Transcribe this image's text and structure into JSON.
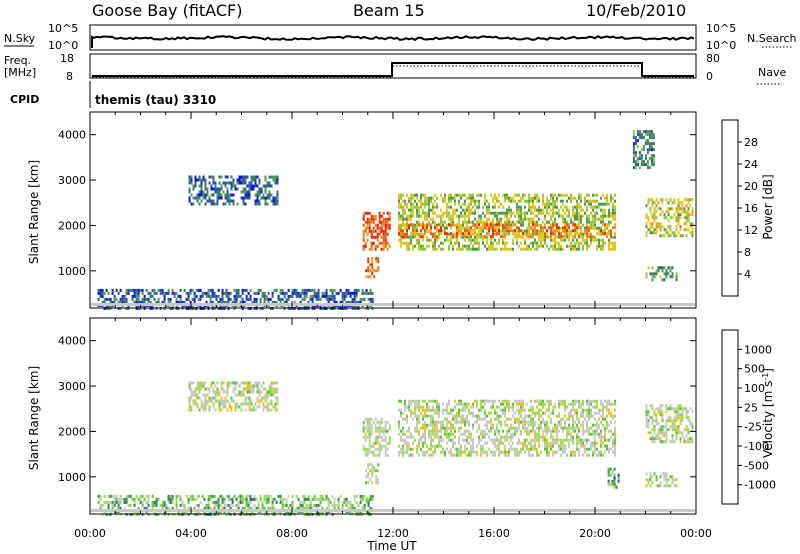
{
  "header": {
    "station": "Goose Bay (fitACF)",
    "beam": "Beam 15",
    "date": "10/Feb/2010"
  },
  "status": {
    "nsky_label": "N.Sky",
    "nsky_ticks": [
      "10^5",
      "10^0"
    ],
    "nsearch_label": "N.Search",
    "nsearch_ticks": [
      "10^5",
      "10^0"
    ],
    "freq_label": "Freq.",
    "freq_unit": "[MHz]",
    "freq_ticks": [
      18,
      8
    ],
    "nave_label": "Nave",
    "nave_ticks": [
      80,
      0
    ],
    "cpid_label": "CPID",
    "cpid_text": "themis (tau) 3310"
  },
  "colors": {
    "power": [
      "#0a18d8",
      "#2a52a8",
      "#3c7a64",
      "#4e9a5a",
      "#8cc43c",
      "#c8d424",
      "#f6b81c",
      "#f08a14",
      "#ec5a10",
      "#e82a0a",
      "#e01808"
    ],
    "velocity": [
      "#2830c8",
      "#2a5fa8",
      "#2f8a58",
      "#62c23a",
      "#9ade4c",
      "#c8c8c8",
      "#c8c8c8",
      "#f2c21a",
      "#f09012",
      "#ee5a10",
      "#e81608"
    ],
    "ground": "#c8c8c8"
  },
  "chart_data": [
    {
      "type": "heatmap",
      "title": "Power",
      "xlabel": "Time UT",
      "ylabel": "Slant Range [km]",
      "x_ticks": [
        "00:00",
        "04:00",
        "08:00",
        "12:00",
        "16:00",
        "20:00",
        "00:00"
      ],
      "xlim_hours": [
        0,
        24
      ],
      "y_ticks": [
        1000,
        2000,
        3000,
        4000
      ],
      "ylim": [
        180,
        4500
      ],
      "colorbar": {
        "label": "Power [dB]",
        "ticks": [
          4,
          8,
          12,
          16,
          20,
          24,
          28
        ],
        "range": [
          0,
          30
        ]
      },
      "regions": [
        {
          "t": [
            3.9,
            7.4
          ],
          "r": [
            2500,
            3100
          ],
          "level": 0.18
        },
        {
          "t": [
            0.3,
            11.2
          ],
          "r": [
            200,
            600
          ],
          "level": 0.16
        },
        {
          "t": [
            10.8,
            11.9
          ],
          "r": [
            1500,
            2300
          ],
          "level": 0.8
        },
        {
          "t": [
            10.9,
            11.4
          ],
          "r": [
            900,
            1300
          ],
          "level": 0.7
        },
        {
          "t": [
            12.2,
            20.8
          ],
          "r": [
            1500,
            2700
          ],
          "level": 0.45
        },
        {
          "t": [
            12.2,
            20.8
          ],
          "r": [
            1750,
            2050
          ],
          "level": 0.7
        },
        {
          "t": [
            22.0,
            23.9
          ],
          "r": [
            1800,
            2600
          ],
          "level": 0.5
        },
        {
          "t": [
            22.0,
            23.2
          ],
          "r": [
            800,
            1100
          ],
          "level": 0.3
        },
        {
          "t": [
            21.5,
            22.3
          ],
          "r": [
            3300,
            4100
          ],
          "level": 0.25
        }
      ]
    },
    {
      "type": "heatmap",
      "title": "Velocity",
      "xlabel": "Time UT",
      "ylabel": "Slant Range [km]",
      "x_ticks": [
        "00:00",
        "04:00",
        "08:00",
        "12:00",
        "16:00",
        "20:00",
        "00:00"
      ],
      "xlim_hours": [
        0,
        24
      ],
      "y_ticks": [
        1000,
        2000,
        3000,
        4000
      ],
      "ylim": [
        180,
        4500
      ],
      "colorbar": {
        "label": "Velocity [m s^-1]",
        "ticks": [
          "1000",
          "500",
          "100",
          "25",
          "-25",
          "-100",
          "-500",
          "-1000"
        ],
        "range": [
          -1000,
          1000
        ]
      },
      "regions": [
        {
          "t": [
            3.9,
            7.4
          ],
          "r": [
            2500,
            3100
          ],
          "level": 0.5
        },
        {
          "t": [
            0.3,
            11.2
          ],
          "r": [
            200,
            600
          ],
          "level": 0.35
        },
        {
          "t": [
            10.8,
            11.9
          ],
          "r": [
            1500,
            2300
          ],
          "level": 0.5
        },
        {
          "t": [
            10.9,
            11.4
          ],
          "r": [
            900,
            1300
          ],
          "level": 0.5
        },
        {
          "t": [
            12.2,
            20.8
          ],
          "r": [
            1500,
            2700
          ],
          "level": 0.5
        },
        {
          "t": [
            22.0,
            23.9
          ],
          "r": [
            1800,
            2600
          ],
          "level": 0.5
        },
        {
          "t": [
            20.5,
            20.9
          ],
          "r": [
            800,
            1200
          ],
          "level": 0.25
        },
        {
          "t": [
            22.0,
            23.2
          ],
          "r": [
            800,
            1100
          ],
          "level": 0.5
        }
      ]
    }
  ]
}
